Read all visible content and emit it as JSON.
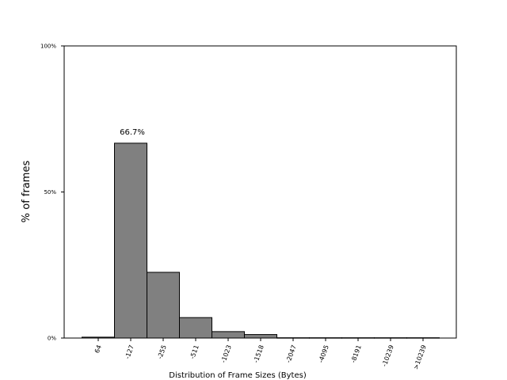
{
  "chart_data": {
    "type": "bar",
    "title": "",
    "xlabel": "Distribution of Frame Sizes (Bytes)",
    "ylabel": "% of frames",
    "categories": [
      "64",
      "-127",
      "-255",
      "-511",
      "-1023",
      "-1518",
      "-2047",
      "-4095",
      "-8191",
      "-10239",
      ">10239"
    ],
    "values": [
      0.3,
      66.7,
      22.5,
      7.0,
      2.2,
      1.2,
      0.1,
      0.1,
      0.1,
      0.1,
      0.1
    ],
    "ylim": [
      0,
      100
    ],
    "yticks": [
      "0%",
      "50%",
      "100%"
    ],
    "ytick_values": [
      0,
      50,
      100
    ],
    "annotations": [
      {
        "category": "-127",
        "text": "66.7%"
      }
    ],
    "bar_color": "#808080",
    "edge_color": "#000000",
    "grid": false
  }
}
